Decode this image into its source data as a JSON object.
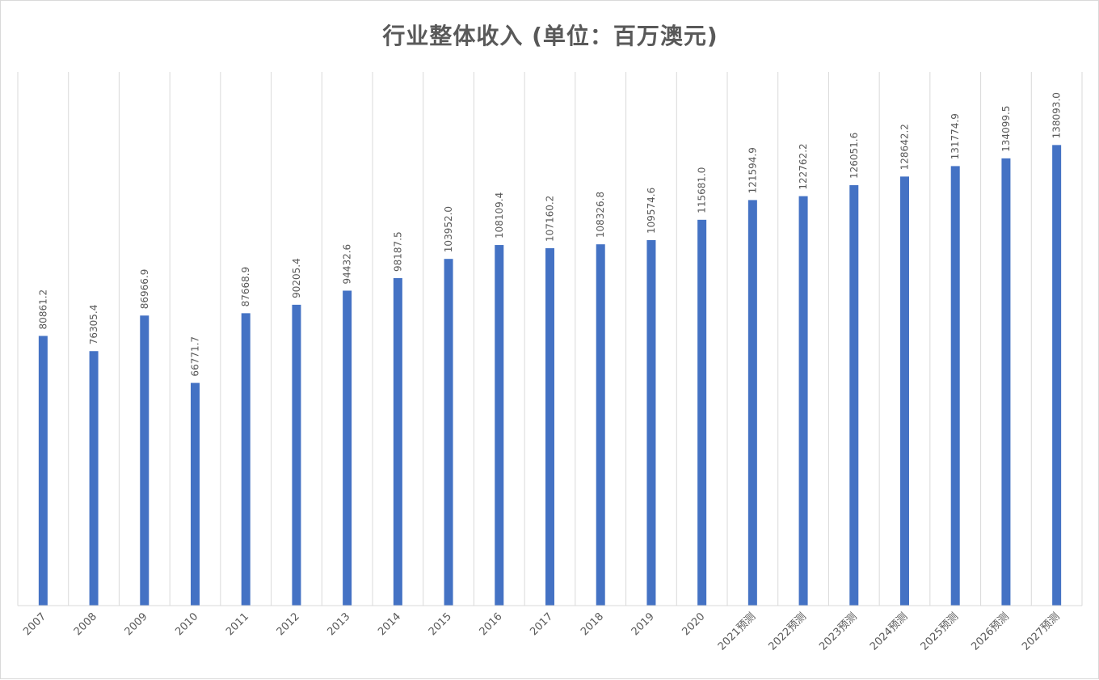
{
  "chart_data": {
    "type": "bar",
    "title": "行业整体收入 (单位：百万澳元)",
    "categories": [
      "2007",
      "2008",
      "2009",
      "2010",
      "2011",
      "2012",
      "2013",
      "2014",
      "2015",
      "2016",
      "2017",
      "2018",
      "2019",
      "2020",
      "2021预测",
      "2022预测",
      "2023预测",
      "2024预测",
      "2025预测",
      "2026预测",
      "2027预测"
    ],
    "values": [
      80861.2,
      76305.4,
      86966.9,
      66771.7,
      87668.9,
      90205.4,
      94432.6,
      98187.5,
      103952.0,
      108109.4,
      107160.2,
      108326.8,
      109574.6,
      115681.0,
      121594.9,
      122762.2,
      126051.6,
      128642.2,
      131774.9,
      134099.5,
      138093.0
    ],
    "data_labels": [
      "80861.2",
      "76305.4",
      "86966.9",
      "66771.7",
      "87668.9",
      "90205.4",
      "94432.6",
      "98187.5",
      "103952.0",
      "108109.4",
      "107160.2",
      "108326.8",
      "109574.6",
      "115681.0",
      "121594.9",
      "122762.2",
      "126051.6",
      "128642.2",
      "131774.9",
      "134099.5",
      "138093.0"
    ],
    "xlabel": "",
    "ylabel": "",
    "ylim": [
      0,
      160000
    ],
    "grid": "vertical",
    "bar_color": "#4472c4",
    "grid_color": "#d9d9d9"
  }
}
